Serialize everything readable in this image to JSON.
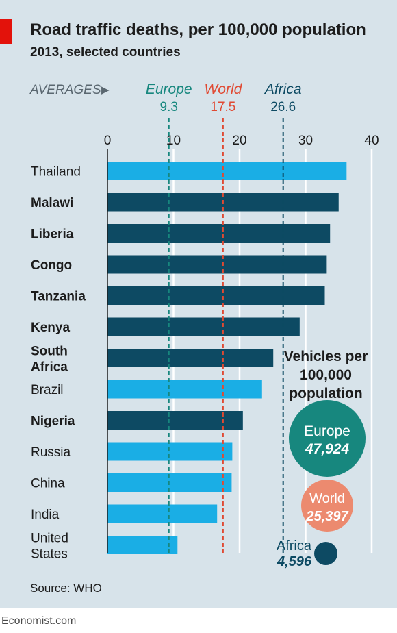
{
  "header": {
    "title": "Road traffic deaths, per 100,000 population",
    "subtitle": "2013, selected countries"
  },
  "footer": {
    "source": "Source: WHO",
    "branding": "Economist.com"
  },
  "colors": {
    "panel": "#d7e3ea",
    "accent_red": "#e3120b",
    "bar_africa": "#0d4a63",
    "bar_other": "#1aaee5",
    "europe": "#17877e",
    "world": "#e04a33",
    "africa": "#0d4a63",
    "world_bubble": "#ec8a6f",
    "gridline": "#ffffff"
  },
  "chart_data": {
    "type": "bar",
    "orientation": "horizontal",
    "title": "Road traffic deaths, per 100,000 population",
    "subtitle": "2013, selected countries",
    "xlim": [
      0,
      40
    ],
    "xticks": [
      0,
      10,
      20,
      30,
      40
    ],
    "grid": true,
    "categories": [
      "Thailand",
      "Malawi",
      "Liberia",
      "Congo",
      "Tanzania",
      "Kenya",
      "South Africa",
      "Brazil",
      "Nigeria",
      "Russia",
      "China",
      "India",
      "United States"
    ],
    "values": [
      36.2,
      35.0,
      33.7,
      33.2,
      32.9,
      29.1,
      25.1,
      23.4,
      20.5,
      18.9,
      18.8,
      16.6,
      10.6
    ],
    "african": [
      false,
      true,
      true,
      true,
      true,
      true,
      true,
      false,
      true,
      false,
      false,
      false,
      false
    ],
    "averages": {
      "label": "AVERAGES",
      "arrow": "▶",
      "items": [
        {
          "name": "Europe",
          "value": 9.3,
          "display": "9.3",
          "color": "#17877e"
        },
        {
          "name": "World",
          "value": 17.5,
          "display": "17.5",
          "color": "#e04a33"
        },
        {
          "name": "Africa",
          "value": 26.6,
          "display": "26.6",
          "color": "#0d4a63"
        }
      ]
    },
    "vehicles": {
      "title_lines": [
        "Vehicles per",
        "100,000",
        "population"
      ],
      "items": [
        {
          "name": "Europe",
          "value": 47924,
          "display": "47,924",
          "color": "#17877e",
          "label_color": "#ffffff",
          "value_color": "#ffffff"
        },
        {
          "name": "World",
          "value": 25397,
          "display": "25,397",
          "color": "#ec8a6f",
          "label_color": "#ffffff",
          "value_color": "#ffffff"
        },
        {
          "name": "Africa",
          "value": 4596,
          "display": "4,596",
          "color": "#0d4a63",
          "label_color": "#0d4a63",
          "value_color": "#0d4a63"
        }
      ]
    }
  }
}
